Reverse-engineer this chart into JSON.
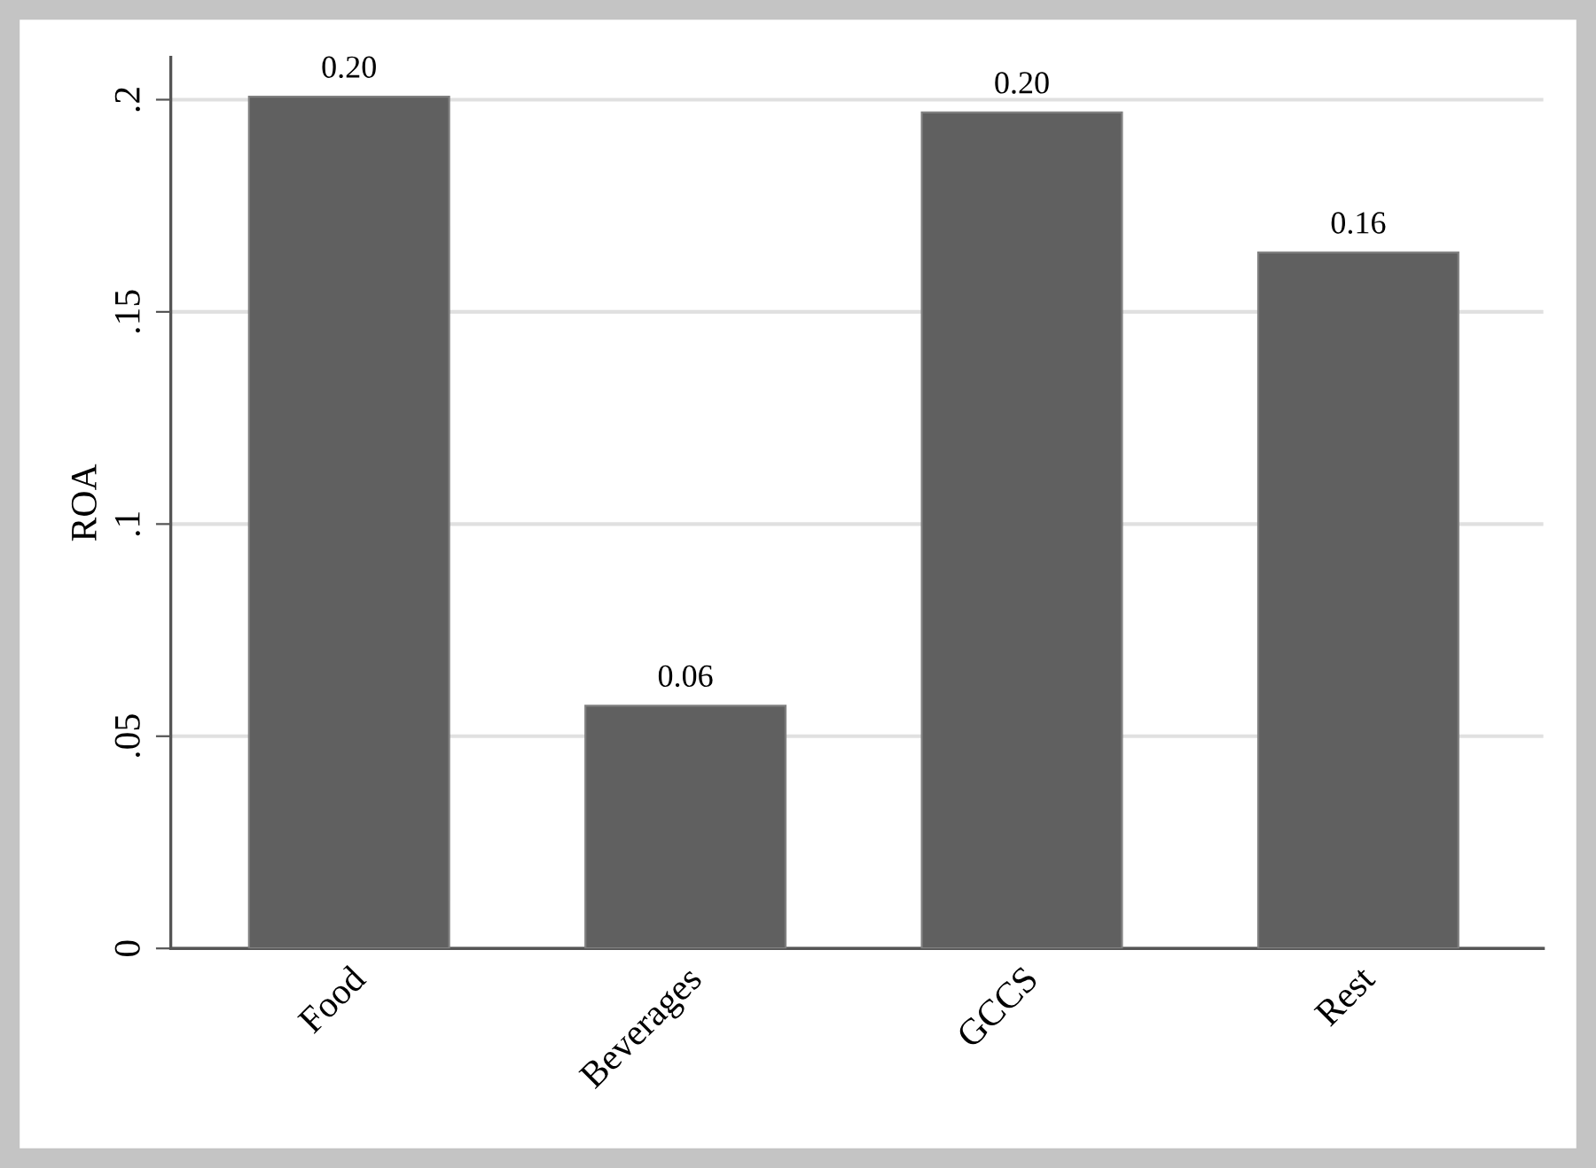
{
  "chart_data": {
    "type": "bar",
    "ylabel": "ROA",
    "categories": [
      "Food",
      "Beverages",
      "GCCS",
      "Rest"
    ],
    "values": [
      0.2007,
      0.0572,
      0.197,
      0.164
    ],
    "value_labels": [
      "0.20",
      "0.06",
      "0.20",
      "0.16"
    ],
    "color": "#606060",
    "ylim": [
      0,
      0.21
    ],
    "yticks": [
      {
        "value": 0,
        "label": "0"
      },
      {
        "value": 0.05,
        "label": ".05"
      },
      {
        "value": 0.1,
        "label": ".1"
      },
      {
        "value": 0.15,
        "label": ".15"
      },
      {
        "value": 0.2,
        "label": ".2"
      }
    ],
    "grid": "y",
    "legend": false
  }
}
